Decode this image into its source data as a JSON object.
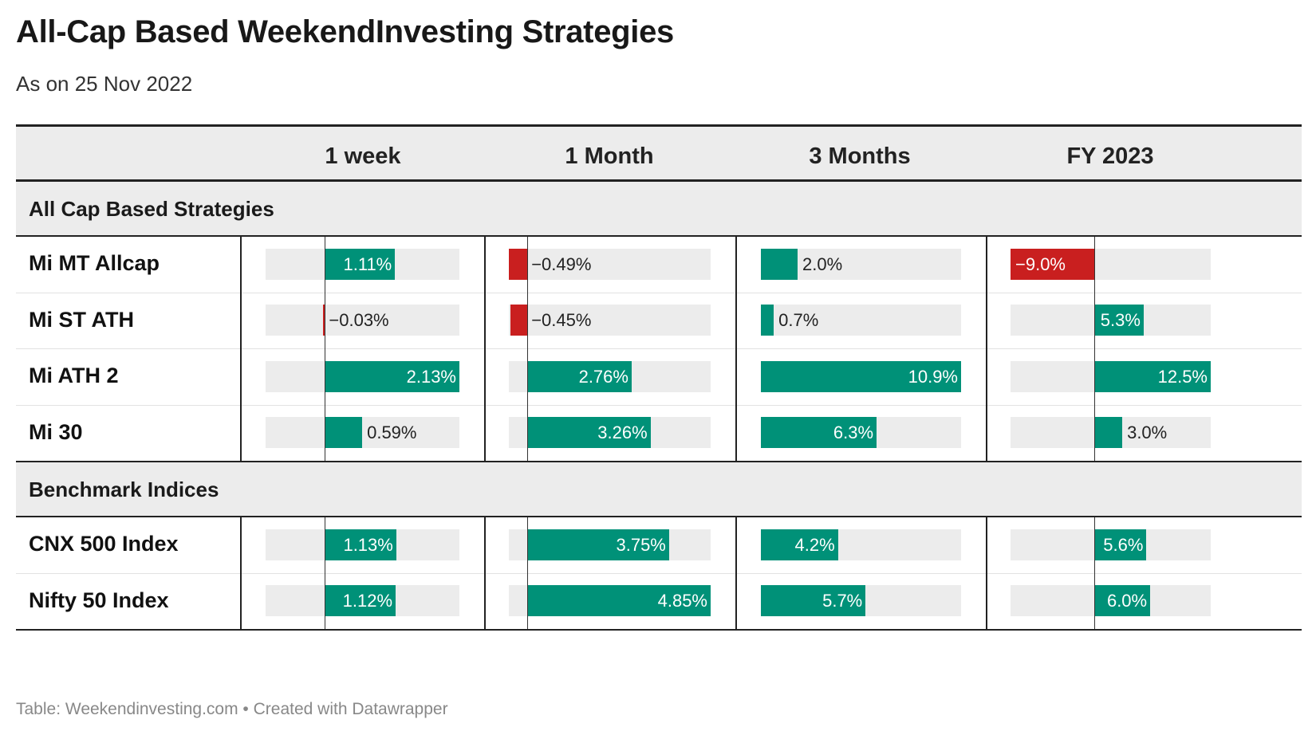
{
  "title": "All-Cap Based WeekendInvesting Strategies",
  "subtitle": "As on 25 Nov 2022",
  "footer": "Table: Weekendinvesting.com • Created with Datawrapper",
  "colors": {
    "positive": "#009178",
    "negative": "#c91f1f",
    "track": "#ececec"
  },
  "chart_data": {
    "type": "table",
    "columns": [
      "1 week",
      "1 Month",
      "3 Months",
      "FY 2023"
    ],
    "groups": [
      {
        "name": "All Cap Based Strategies",
        "rows": [
          {
            "label": "Mi MT Allcap",
            "values": [
              1.11,
              -0.49,
              2.0,
              -9.0
            ],
            "display": [
              "1.11%",
              "−0.49%",
              "2.0%",
              "−9.0%"
            ]
          },
          {
            "label": "Mi ST ATH",
            "values": [
              -0.03,
              -0.45,
              0.7,
              5.3
            ],
            "display": [
              "−0.03%",
              "−0.45%",
              "0.7%",
              "5.3%"
            ]
          },
          {
            "label": "Mi ATH 2",
            "values": [
              2.13,
              2.76,
              10.9,
              12.5
            ],
            "display": [
              "2.13%",
              "2.76%",
              "10.9%",
              "12.5%"
            ]
          },
          {
            "label": "Mi 30",
            "values": [
              0.59,
              3.26,
              6.3,
              3.0
            ],
            "display": [
              "0.59%",
              "3.26%",
              "6.3%",
              "3.0%"
            ]
          }
        ]
      },
      {
        "name": "Benchmark Indices",
        "rows": [
          {
            "label": "CNX 500 Index",
            "values": [
              1.13,
              3.75,
              4.2,
              5.6
            ],
            "display": [
              "1.13%",
              "3.75%",
              "4.2%",
              "5.6%"
            ]
          },
          {
            "label": "Nifty 50 Index",
            "values": [
              1.12,
              4.85,
              5.7,
              6.0
            ],
            "display": [
              "1.12%",
              "4.85%",
              "5.7%",
              "6.0%"
            ]
          }
        ]
      }
    ],
    "bar_ranges": [
      [
        -0.94,
        2.13
      ],
      [
        -0.49,
        4.85
      ],
      [
        0.0,
        10.9
      ],
      [
        -9.0,
        12.5
      ]
    ]
  }
}
